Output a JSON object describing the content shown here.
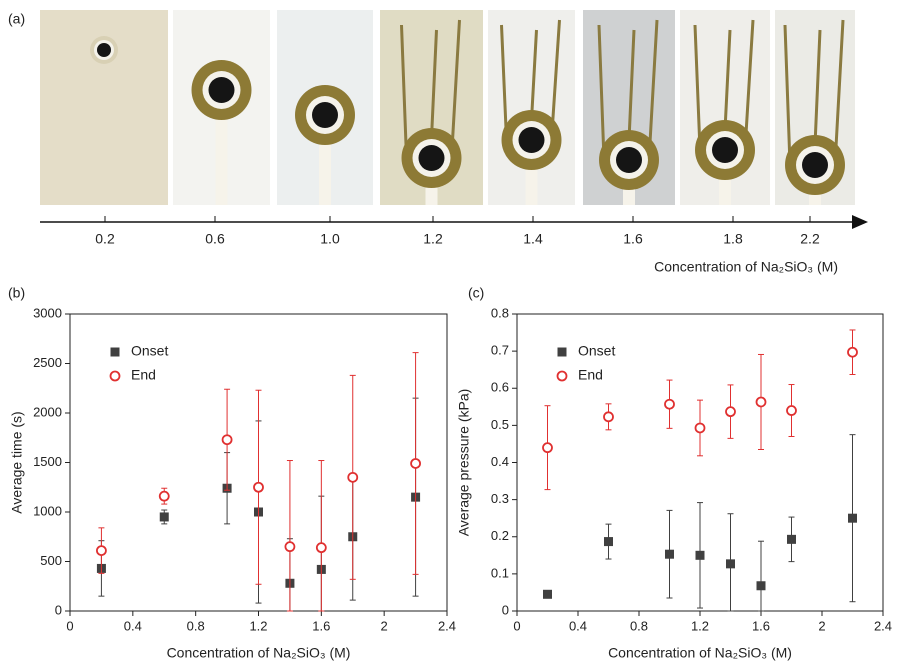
{
  "panel_a": {
    "label": "(a)",
    "concentrations": [
      "0.2",
      "0.6",
      "1.0",
      "1.2",
      "1.4",
      "1.6",
      "1.8",
      "2.2"
    ],
    "axis_label": "Concentration of Na₂SiO₃ (M)"
  },
  "chart_data": [
    {
      "type": "scatter",
      "panel_label": "(b)",
      "x_label": "Concentration of Na₂SiO₃ (M)",
      "y_label": "Average time (s)",
      "xlim": [
        0,
        2.4
      ],
      "xticks": [
        0,
        0.4,
        0.8,
        1.2,
        1.6,
        2,
        2.4
      ],
      "ylim": [
        0,
        3000
      ],
      "yticks": [
        0,
        500,
        1000,
        1500,
        2000,
        2500,
        3000
      ],
      "legend": "upper left",
      "x": [
        0.2,
        0.6,
        1.0,
        1.2,
        1.4,
        1.6,
        1.8,
        2.2
      ],
      "series": [
        {
          "name": "Onset",
          "color": "#404040",
          "marker": "square",
          "values": [
            430,
            950,
            1240,
            1000,
            280,
            420,
            750,
            1150
          ],
          "errors": [
            280,
            70,
            360,
            920,
            450,
            740,
            640,
            1000
          ]
        },
        {
          "name": "End",
          "color": "#e03030",
          "marker": "circle",
          "values": [
            610,
            1160,
            1730,
            1250,
            650,
            640,
            1350,
            1490
          ],
          "errors": [
            230,
            80,
            510,
            980,
            870,
            880,
            1030,
            1120
          ]
        }
      ]
    },
    {
      "type": "scatter",
      "panel_label": "(c)",
      "x_label": "Concentration of Na₂SiO₃ (M)",
      "y_label": "Average pressure (kPa)",
      "xlim": [
        0,
        2.4
      ],
      "xticks": [
        0,
        0.4,
        0.8,
        1.2,
        1.6,
        2,
        2.4
      ],
      "ylim": [
        0,
        0.8
      ],
      "yticks": [
        0,
        0.1,
        0.2,
        0.3,
        0.4,
        0.5,
        0.6,
        0.7,
        0.8
      ],
      "legend": "upper left",
      "x": [
        0.2,
        0.6,
        1.0,
        1.2,
        1.4,
        1.6,
        1.8,
        2.2
      ],
      "series": [
        {
          "name": "Onset",
          "color": "#404040",
          "marker": "square",
          "values": [
            0.045,
            0.187,
            0.153,
            0.15,
            0.127,
            0.068,
            0.193,
            0.25
          ],
          "errors": [
            0,
            0.047,
            0.118,
            0.142,
            0.135,
            0.12,
            0.06,
            0.225
          ]
        },
        {
          "name": "End",
          "color": "#e03030",
          "marker": "circle",
          "values": [
            0.44,
            0.523,
            0.557,
            0.493,
            0.537,
            0.563,
            0.54,
            0.697
          ],
          "errors": [
            0.113,
            0.035,
            0.065,
            0.075,
            0.072,
            0.128,
            0.07,
            0.06
          ]
        }
      ]
    }
  ]
}
